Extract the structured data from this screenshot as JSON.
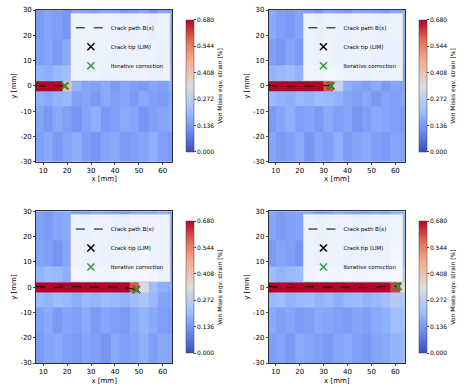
{
  "chart_data": [
    {
      "type": "heatmap",
      "x_label": "x [mm]",
      "y_label": "y [mm]",
      "xlim": [
        7,
        64
      ],
      "ylim": [
        -30,
        30
      ],
      "xticks": [
        10,
        20,
        30,
        40,
        50,
        60
      ],
      "yticks": [
        -30,
        -20,
        -10,
        0,
        10,
        20,
        30
      ],
      "legend": "upper right",
      "colorbar": {
        "title": "Von Mises eqv. strain [%]",
        "range": [
          0,
          0.68
        ],
        "ticks": [
          {
            "value": 0,
            "label": "0.000"
          },
          0.136,
          0.272,
          0.408,
          0.544,
          {
            "value": 0.68,
            "label": "0.680"
          }
        ]
      },
      "x": [
        8,
        12,
        16,
        20,
        24,
        28,
        32,
        36,
        40,
        44,
        48,
        52,
        56,
        60,
        64
      ],
      "y": [
        -25,
        -12,
        -4,
        0,
        4,
        12,
        25
      ],
      "z": [
        [
          0.15,
          0.17,
          0.14,
          0.16,
          0.18,
          0.15,
          0.13,
          0.16,
          0.17,
          0.14,
          0.15,
          0.16,
          0.18,
          0.15,
          0.14
        ],
        [
          0.16,
          0.14,
          0.17,
          0.15,
          0.13,
          0.16,
          0.18,
          0.14,
          0.15,
          0.17,
          0.16,
          0.13,
          0.15,
          0.16,
          0.17
        ],
        [
          0.18,
          0.17,
          0.19,
          0.2,
          0.15,
          0.16,
          0.14,
          0.17,
          0.15,
          0.16,
          0.14,
          0.17,
          0.15,
          0.14,
          0.16
        ],
        [
          0.68,
          0.68,
          0.68,
          0.42,
          0.19,
          0.16,
          0.15,
          0.17,
          0.14,
          0.16,
          0.15,
          0.14,
          0.16,
          0.15,
          0.17
        ],
        [
          0.19,
          0.18,
          0.2,
          0.21,
          0.16,
          0.15,
          0.17,
          0.14,
          0.16,
          0.15,
          0.17,
          0.16,
          0.14,
          0.15,
          0.16
        ],
        [
          0.15,
          0.16,
          0.14,
          0.17,
          0.15,
          0.18,
          0.16,
          0.15,
          0.13,
          0.16,
          0.17,
          0.15,
          0.16,
          0.14,
          0.15
        ],
        [
          0.14,
          0.16,
          0.15,
          0.13,
          0.17,
          0.16,
          0.15,
          0.17,
          0.16,
          0.14,
          0.15,
          0.17,
          0.13,
          0.16,
          0.15
        ]
      ],
      "series": [
        {
          "name": "Crack path B(x)",
          "type": "line",
          "line_style": "dashed",
          "color": "#000000",
          "x": [
            7,
            11,
            15,
            19
          ],
          "y": [
            0.2,
            -0.2,
            0.1,
            0
          ]
        },
        {
          "name": "Crack tip (LIM)",
          "type": "scatter",
          "marker": "x",
          "color": "#000000",
          "x": [
            19
          ],
          "y": [
            0
          ]
        },
        {
          "name": "Iterative correction",
          "type": "scatter",
          "marker": "x",
          "color": "#2ca02c",
          "x": [
            19
          ],
          "y": [
            0
          ]
        }
      ]
    },
    {
      "type": "heatmap",
      "x_label": "x [mm]",
      "y_label": "y [mm]",
      "xlim": [
        7,
        64
      ],
      "ylim": [
        -30,
        30
      ],
      "xticks": [
        10,
        20,
        30,
        40,
        50,
        60
      ],
      "yticks": [
        -30,
        -20,
        -10,
        0,
        10,
        20,
        30
      ],
      "legend": "upper right",
      "colorbar": {
        "title": "Von Mises eqv. strain [%]",
        "range": [
          0,
          0.68
        ],
        "ticks": [
          {
            "value": 0,
            "label": "0.000"
          },
          0.136,
          0.272,
          0.408,
          0.544,
          {
            "value": 0.68,
            "label": "0.680"
          }
        ]
      },
      "x": [
        8,
        12,
        16,
        20,
        24,
        28,
        32,
        36,
        40,
        44,
        48,
        52,
        56,
        60,
        64
      ],
      "y": [
        -25,
        -12,
        -4,
        0,
        4,
        12,
        25
      ],
      "z": [
        [
          0.16,
          0.14,
          0.15,
          0.17,
          0.13,
          0.16,
          0.15,
          0.18,
          0.14,
          0.16,
          0.17,
          0.15,
          0.14,
          0.16,
          0.15
        ],
        [
          0.14,
          0.16,
          0.18,
          0.15,
          0.16,
          0.14,
          0.17,
          0.15,
          0.16,
          0.13,
          0.15,
          0.17,
          0.16,
          0.15,
          0.14
        ],
        [
          0.2,
          0.19,
          0.18,
          0.2,
          0.19,
          0.21,
          0.2,
          0.19,
          0.16,
          0.15,
          0.17,
          0.14,
          0.16,
          0.15,
          0.16
        ],
        [
          0.68,
          0.68,
          0.68,
          0.68,
          0.68,
          0.68,
          0.6,
          0.3,
          0.18,
          0.16,
          0.15,
          0.17,
          0.14,
          0.16,
          0.15
        ],
        [
          0.19,
          0.2,
          0.21,
          0.19,
          0.2,
          0.18,
          0.21,
          0.2,
          0.15,
          0.16,
          0.14,
          0.16,
          0.15,
          0.17,
          0.14
        ],
        [
          0.15,
          0.13,
          0.16,
          0.14,
          0.17,
          0.15,
          0.16,
          0.14,
          0.17,
          0.15,
          0.16,
          0.14,
          0.15,
          0.13,
          0.16
        ],
        [
          0.17,
          0.15,
          0.14,
          0.16,
          0.15,
          0.13,
          0.16,
          0.15,
          0.14,
          0.17,
          0.16,
          0.15,
          0.14,
          0.16,
          0.17
        ]
      ],
      "series": [
        {
          "name": "Crack path B(x)",
          "type": "line",
          "line_style": "dashed",
          "color": "#000000",
          "x": [
            7,
            13,
            19,
            25,
            29,
            33
          ],
          "y": [
            0.2,
            -0.2,
            0.1,
            -0.1,
            0.2,
            0
          ]
        },
        {
          "name": "Crack tip (LIM)",
          "type": "scatter",
          "marker": "x",
          "color": "#000000",
          "x": [
            33
          ],
          "y": [
            0
          ]
        },
        {
          "name": "Iterative correction",
          "type": "scatter",
          "marker": "x",
          "color": "#2ca02c",
          "x": [
            33
          ],
          "y": [
            0
          ]
        }
      ]
    },
    {
      "type": "heatmap",
      "x_label": "x [mm]",
      "y_label": "y [mm]",
      "xlim": [
        7,
        64
      ],
      "ylim": [
        -30,
        30
      ],
      "xticks": [
        10,
        20,
        30,
        40,
        50,
        60
      ],
      "yticks": [
        -30,
        -20,
        -10,
        0,
        10,
        20,
        30
      ],
      "legend": "upper right",
      "colorbar": {
        "title": "Von Mises eqv. strain [%]",
        "range": [
          0,
          0.68
        ],
        "ticks": [
          {
            "value": 0,
            "label": "0.000"
          },
          0.136,
          0.272,
          0.408,
          0.544,
          {
            "value": 0.68,
            "label": "0.680"
          }
        ]
      },
      "x": [
        8,
        12,
        16,
        20,
        24,
        28,
        32,
        36,
        40,
        44,
        48,
        52,
        56,
        60,
        64
      ],
      "y": [
        -25,
        -12,
        -4,
        0,
        4,
        12,
        25
      ],
      "z": [
        [
          0.14,
          0.16,
          0.17,
          0.15,
          0.14,
          0.16,
          0.15,
          0.13,
          0.17,
          0.15,
          0.16,
          0.18,
          0.15,
          0.17,
          0.16
        ],
        [
          0.15,
          0.17,
          0.14,
          0.16,
          0.15,
          0.17,
          0.14,
          0.16,
          0.15,
          0.14,
          0.17,
          0.19,
          0.17,
          0.15,
          0.14
        ],
        [
          0.2,
          0.19,
          0.21,
          0.2,
          0.18,
          0.2,
          0.19,
          0.21,
          0.2,
          0.19,
          0.22,
          0.24,
          0.2,
          0.16,
          0.15
        ],
        [
          0.68,
          0.68,
          0.68,
          0.68,
          0.68,
          0.68,
          0.68,
          0.68,
          0.68,
          0.68,
          0.6,
          0.33,
          0.22,
          0.18,
          0.17
        ],
        [
          0.19,
          0.21,
          0.2,
          0.18,
          0.2,
          0.21,
          0.19,
          0.2,
          0.18,
          0.2,
          0.23,
          0.25,
          0.21,
          0.17,
          0.16
        ],
        [
          0.16,
          0.15,
          0.13,
          0.16,
          0.17,
          0.15,
          0.16,
          0.14,
          0.15,
          0.16,
          0.18,
          0.2,
          0.18,
          0.16,
          0.15
        ],
        [
          0.15,
          0.14,
          0.16,
          0.17,
          0.15,
          0.14,
          0.17,
          0.16,
          0.15,
          0.13,
          0.16,
          0.17,
          0.16,
          0.18,
          0.15
        ]
      ],
      "series": [
        {
          "name": "Crack path B(x)",
          "type": "line",
          "line_style": "dashed",
          "color": "#000000",
          "x": [
            7,
            15,
            23,
            31,
            39,
            45,
            49
          ],
          "y": [
            0.2,
            -0.1,
            0.2,
            0,
            0.1,
            -0.3,
            -1
          ]
        },
        {
          "name": "Crack tip (LIM)",
          "type": "scatter",
          "marker": "x",
          "color": "#000000",
          "x": [
            49
          ],
          "y": [
            -1
          ]
        },
        {
          "name": "Iterative correction",
          "type": "scatter",
          "marker": "x",
          "color": "#2ca02c",
          "x": [
            49
          ],
          "y": [
            -1
          ]
        }
      ]
    },
    {
      "type": "heatmap",
      "x_label": "x [mm]",
      "y_label": "y [mm]",
      "xlim": [
        7,
        64
      ],
      "ylim": [
        -30,
        30
      ],
      "xticks": [
        10,
        20,
        30,
        40,
        50,
        60
      ],
      "yticks": [
        -30,
        -20,
        -10,
        0,
        10,
        20,
        30
      ],
      "legend": "upper right",
      "colorbar": {
        "title": "Von Mises eqv. strain [%]",
        "range": [
          0,
          0.68
        ],
        "ticks": [
          {
            "value": 0,
            "label": "0.000"
          },
          0.136,
          0.272,
          0.408,
          0.544,
          {
            "value": 0.68,
            "label": "0.680"
          }
        ]
      },
      "x": [
        8,
        12,
        16,
        20,
        24,
        28,
        32,
        36,
        40,
        44,
        48,
        52,
        56,
        60,
        64
      ],
      "y": [
        -25,
        -12,
        -4,
        0,
        4,
        12,
        25
      ],
      "z": [
        [
          0.15,
          0.16,
          0.14,
          0.17,
          0.16,
          0.15,
          0.14,
          0.16,
          0.17,
          0.15,
          0.14,
          0.16,
          0.17,
          0.19,
          0.2
        ],
        [
          0.17,
          0.15,
          0.16,
          0.14,
          0.15,
          0.17,
          0.16,
          0.15,
          0.14,
          0.16,
          0.15,
          0.17,
          0.18,
          0.22,
          0.21
        ],
        [
          0.2,
          0.21,
          0.19,
          0.2,
          0.21,
          0.19,
          0.2,
          0.18,
          0.2,
          0.21,
          0.19,
          0.2,
          0.22,
          0.26,
          0.24
        ],
        [
          0.68,
          0.68,
          0.68,
          0.68,
          0.68,
          0.68,
          0.68,
          0.68,
          0.68,
          0.68,
          0.68,
          0.68,
          0.68,
          0.62,
          0.36
        ],
        [
          0.21,
          0.19,
          0.2,
          0.21,
          0.18,
          0.2,
          0.21,
          0.19,
          0.2,
          0.19,
          0.21,
          0.2,
          0.23,
          0.27,
          0.25
        ],
        [
          0.14,
          0.16,
          0.15,
          0.13,
          0.16,
          0.15,
          0.17,
          0.16,
          0.14,
          0.15,
          0.16,
          0.15,
          0.17,
          0.21,
          0.2
        ],
        [
          0.16,
          0.14,
          0.15,
          0.16,
          0.17,
          0.14,
          0.15,
          0.17,
          0.16,
          0.14,
          0.15,
          0.16,
          0.15,
          0.18,
          0.19
        ]
      ],
      "series": [
        {
          "name": "Crack path B(x)",
          "type": "line",
          "line_style": "dashed",
          "color": "#000000",
          "x": [
            7,
            15,
            23,
            31,
            39,
            47,
            55,
            61
          ],
          "y": [
            0.2,
            -0.1,
            0.2,
            0,
            0.1,
            -0.2,
            0.2,
            0.3
          ]
        },
        {
          "name": "Crack tip (LIM)",
          "type": "scatter",
          "marker": "x",
          "color": "#000000",
          "x": [
            61
          ],
          "y": [
            0.3
          ]
        },
        {
          "name": "Iterative correction",
          "type": "scatter",
          "marker": "x",
          "color": "#2ca02c",
          "x": [
            61
          ],
          "y": [
            0.3
          ]
        }
      ]
    }
  ]
}
